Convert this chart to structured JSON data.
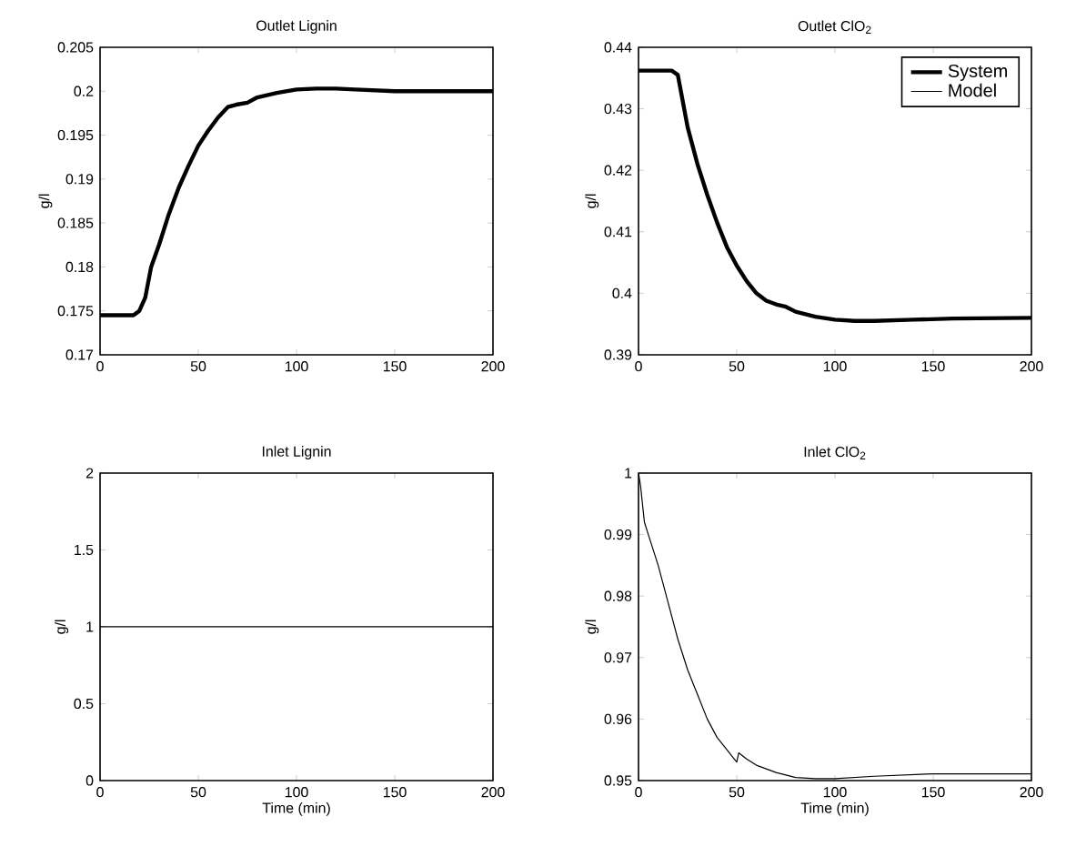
{
  "chart_data": [
    {
      "type": "line",
      "title": "Outlet Lignin",
      "ylabel": "g/l",
      "xlim": [
        0,
        200
      ],
      "xticks": [
        0,
        50,
        100,
        150,
        200
      ],
      "ylim": [
        0.17,
        0.205
      ],
      "yticks": [
        0.17,
        0.175,
        0.18,
        0.185,
        0.19,
        0.195,
        0.2,
        0.205
      ],
      "x": [
        0,
        17,
        20,
        23,
        26,
        30,
        35,
        40,
        45,
        50,
        55,
        60,
        65,
        70,
        75,
        80,
        90,
        100,
        110,
        120,
        130,
        150,
        175,
        200
      ],
      "series": [
        {
          "color": "#000000",
          "values": [
            0.1745,
            0.1745,
            0.175,
            0.1765,
            0.18,
            0.1825,
            0.186,
            0.189,
            0.1915,
            0.1938,
            0.1955,
            0.197,
            0.1982,
            0.1985,
            0.1987,
            0.1993,
            0.1998,
            0.2002,
            0.2003,
            0.2003,
            0.2002,
            0.2,
            0.2,
            0.2
          ]
        }
      ]
    },
    {
      "type": "line",
      "title": "Outlet ClO$_{2}$",
      "ylabel": "g/l",
      "legend": "top right",
      "xlim": [
        0,
        200
      ],
      "xticks": [
        0,
        50,
        100,
        150,
        200
      ],
      "ylim": [
        0.39,
        0.44
      ],
      "yticks": [
        0.39,
        0.4,
        0.41,
        0.42,
        0.43,
        0.44
      ],
      "x": [
        0,
        17,
        20,
        25,
        30,
        35,
        40,
        45,
        50,
        55,
        60,
        65,
        70,
        75,
        80,
        90,
        100,
        110,
        120,
        140,
        160,
        200
      ],
      "series": [
        {
          "name": "System",
          "color": "#000000",
          "values": [
            0.4362,
            0.4362,
            0.4355,
            0.427,
            0.421,
            0.416,
            0.4115,
            0.4075,
            0.4045,
            0.402,
            0.4,
            0.3988,
            0.3982,
            0.3978,
            0.397,
            0.3962,
            0.3957,
            0.3955,
            0.3955,
            0.3957,
            0.3959,
            0.396
          ]
        },
        {
          "name": "Model",
          "color": "#000000",
          "values": [
            null,
            null,
            null,
            null,
            null,
            null,
            null,
            null,
            null,
            null,
            null,
            null,
            null,
            null,
            null,
            null,
            null,
            null,
            null,
            null,
            null,
            null
          ]
        }
      ]
    },
    {
      "type": "line",
      "title": "Inlet Lignin",
      "xlabel": "Time (min)",
      "ylabel": "g/l",
      "xlim": [
        0,
        200
      ],
      "xticks": [
        0,
        50,
        100,
        150,
        200
      ],
      "ylim": [
        0,
        2
      ],
      "yticks": [
        0,
        0.5,
        1,
        1.5,
        2
      ],
      "x": [
        0,
        200
      ],
      "series": [
        {
          "color": "#000000",
          "values": [
            1,
            1
          ]
        }
      ]
    },
    {
      "type": "line",
      "title": "Inlet ClO$_{2}$",
      "xlabel": "Time (min)",
      "ylabel": "g/l",
      "xlim": [
        0,
        200
      ],
      "xticks": [
        0,
        50,
        100,
        150,
        200
      ],
      "ylim": [
        0.95,
        1
      ],
      "yticks": [
        0.95,
        0.96,
        0.97,
        0.98,
        0.99,
        1
      ],
      "x": [
        0,
        1,
        3,
        5,
        10,
        15,
        20,
        25,
        30,
        35,
        40,
        45,
        48,
        50,
        51,
        55,
        60,
        70,
        80,
        90,
        100,
        120,
        150,
        200
      ],
      "series": [
        {
          "color": "#000000",
          "values": [
            1.0,
            0.998,
            0.992,
            0.99,
            0.985,
            0.979,
            0.973,
            0.968,
            0.964,
            0.96,
            0.957,
            0.955,
            0.9538,
            0.953,
            0.9545,
            0.9535,
            0.9525,
            0.9513,
            0.9505,
            0.9503,
            0.9503,
            0.9507,
            0.9511,
            0.9511
          ]
        }
      ]
    }
  ]
}
